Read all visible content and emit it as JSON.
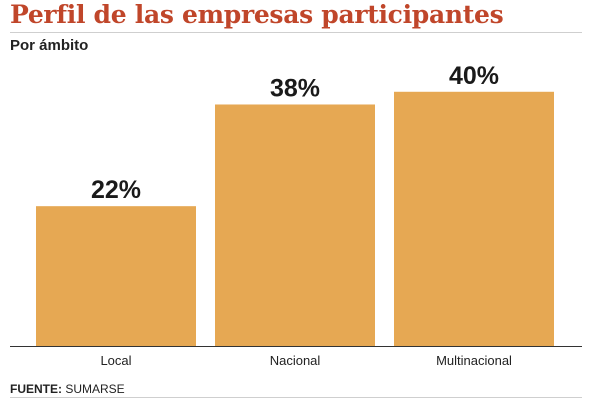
{
  "header": {
    "title": "Perfil de las empresas participantes",
    "subtitle": "Por ámbito"
  },
  "footer": {
    "source_label": "FUENTE:",
    "source_value": "SUMARSE"
  },
  "colors": {
    "title": "#c0462a",
    "bar": "#e6a853",
    "bar_label": "#1a1a1a"
  },
  "chart_data": {
    "type": "bar",
    "title": "Perfil de las empresas participantes",
    "subtitle": "Por ámbito",
    "categories": [
      "Local",
      "Nacional",
      "Multinacional"
    ],
    "values": [
      22,
      38,
      40
    ],
    "data_labels": [
      "22%",
      "38%",
      "40%"
    ],
    "unit": "%",
    "ylim": [
      0,
      45
    ],
    "grid": false,
    "legend": "none"
  }
}
